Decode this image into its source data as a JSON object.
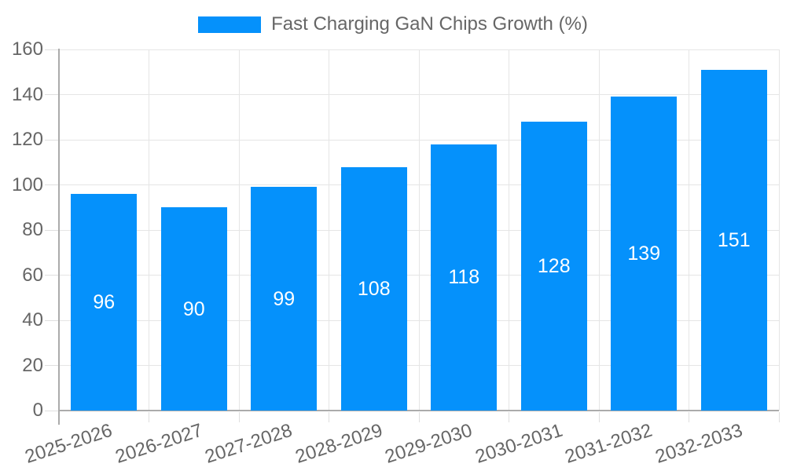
{
  "legend": {
    "label": "Fast Charging GaN Chips Growth (%)"
  },
  "chart_data": {
    "type": "bar",
    "title": "Fast Charging GaN Chips Growth (%)",
    "categories": [
      "2025-2026",
      "2026-2027",
      "2027-2028",
      "2028-2029",
      "2029-2030",
      "2030-2031",
      "2031-2032",
      "2032-2033"
    ],
    "values": [
      96,
      90,
      99,
      108,
      118,
      128,
      139,
      151
    ],
    "yticks": [
      0,
      20,
      40,
      60,
      80,
      100,
      120,
      140,
      160
    ],
    "ylim": [
      0,
      160
    ],
    "xlabel": "",
    "ylabel": "",
    "grid": true,
    "legend_position": "top-center",
    "x_label_rotation_deg": -18,
    "bar_value_label_position": "inside-middle",
    "colors": {
      "bar": "#0591FB",
      "value_label": "#FFFFFF",
      "text": "#666666",
      "gridline": "#E5E5E5",
      "axis": "#ABABAB",
      "tick": "#DFDFDF",
      "background": "#FFFFFF"
    }
  }
}
